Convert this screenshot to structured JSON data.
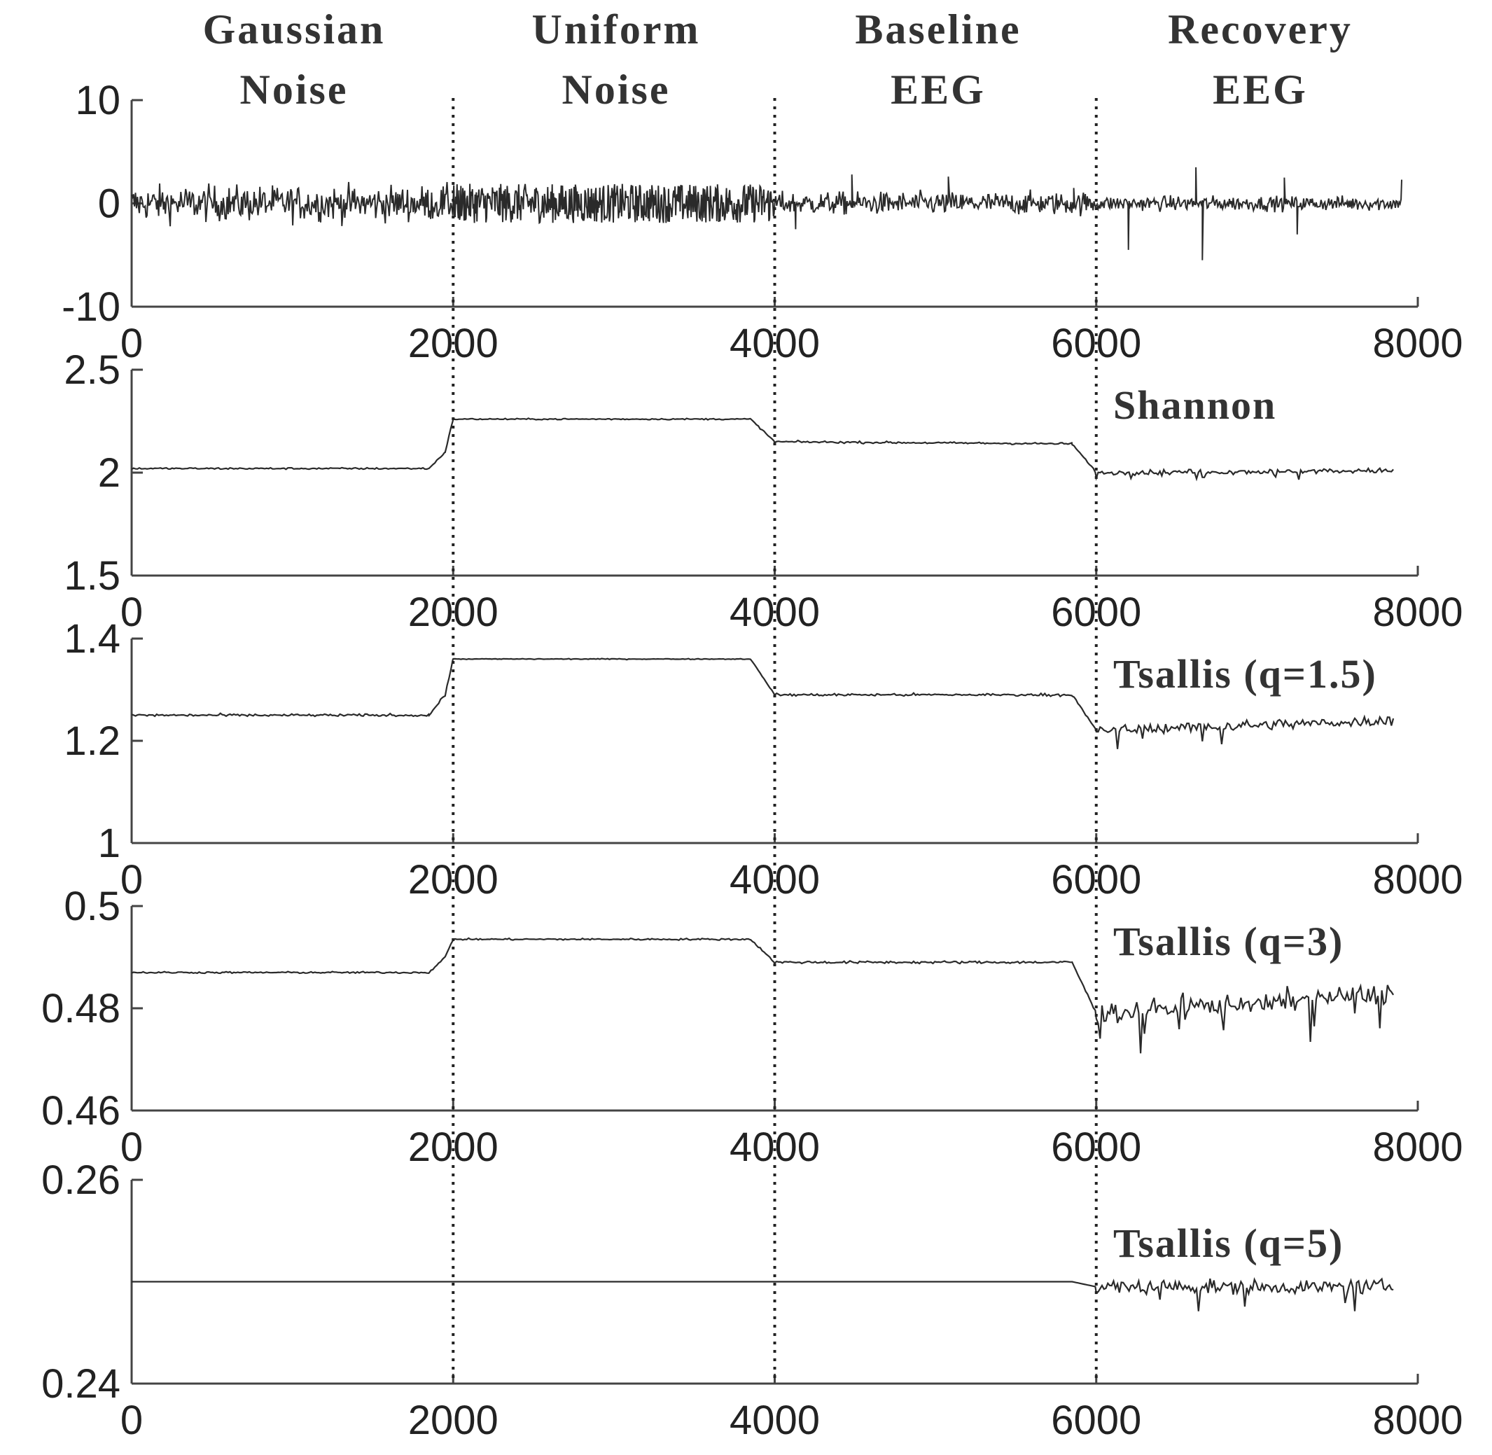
{
  "chart_data": [
    {
      "type": "line",
      "panel": "signal",
      "label": "",
      "xlim": [
        0,
        8000
      ],
      "ylim": [
        -10,
        10
      ],
      "xticks": [
        "0",
        "2000",
        "4000",
        "6000",
        "8000"
      ],
      "yticks": [
        "10",
        "0",
        "-10"
      ],
      "segments": [
        {
          "x0": 0,
          "x1": 2000,
          "kind": "noise",
          "amp": 2.2,
          "base": 0
        },
        {
          "x0": 2000,
          "x1": 4000,
          "kind": "uniform",
          "amp": 1.9,
          "base": 0
        },
        {
          "x0": 4000,
          "x1": 6000,
          "kind": "noise",
          "amp": 1.4,
          "base": 0
        },
        {
          "x0": 6000,
          "x1": 7900,
          "kind": "noise",
          "amp": 0.9,
          "base": 0
        }
      ],
      "spikes": [
        [
          4130,
          -2.5
        ],
        [
          4480,
          2.8
        ],
        [
          5080,
          2.6
        ],
        [
          5860,
          1.5
        ],
        [
          6200,
          -4.5
        ],
        [
          6620,
          3.5
        ],
        [
          6660,
          -5.5
        ],
        [
          7170,
          2.5
        ],
        [
          7250,
          -3.0
        ],
        [
          7900,
          2.3
        ]
      ]
    },
    {
      "type": "line",
      "panel": "shannon",
      "label": "Shannon",
      "xlim": [
        0,
        8000
      ],
      "ylim": [
        1.5,
        2.5
      ],
      "xticks": [
        "0",
        "2000",
        "4000",
        "6000",
        "8000"
      ],
      "yticks": [
        "2.5",
        "2",
        "1.5"
      ],
      "points": [
        [
          0,
          2.02
        ],
        [
          1850,
          2.02
        ],
        [
          1950,
          2.1
        ],
        [
          2000,
          2.26
        ],
        [
          3850,
          2.26
        ],
        [
          4000,
          2.15
        ],
        [
          5850,
          2.14
        ],
        [
          6000,
          2.0
        ],
        [
          7850,
          2.01
        ]
      ],
      "jitter": [
        0.005,
        0.004,
        0.006,
        0.014
      ]
    },
    {
      "type": "line",
      "panel": "tsallis-1.5",
      "label": "Tsallis (q=1.5)",
      "xlim": [
        0,
        8000
      ],
      "ylim": [
        1,
        1.4
      ],
      "xticks": [
        "0",
        "2000",
        "4000",
        "6000",
        "8000"
      ],
      "yticks": [
        "1.4",
        "1.2",
        "1"
      ],
      "points": [
        [
          0,
          1.25
        ],
        [
          1850,
          1.25
        ],
        [
          1950,
          1.29
        ],
        [
          2000,
          1.36
        ],
        [
          3850,
          1.36
        ],
        [
          4000,
          1.29
        ],
        [
          5850,
          1.29
        ],
        [
          6000,
          1.22
        ],
        [
          7850,
          1.24
        ]
      ],
      "jitter": [
        0.003,
        0.001,
        0.003,
        0.012
      ]
    },
    {
      "type": "line",
      "panel": "tsallis-3",
      "label": "Tsallis (q=3)",
      "xlim": [
        0,
        8000
      ],
      "ylim": [
        0.46,
        0.5
      ],
      "xticks": [
        "0",
        "2000",
        "4000",
        "6000",
        "8000"
      ],
      "yticks": [
        "0.5",
        "0.48",
        "0.46"
      ],
      "points": [
        [
          0,
          0.487
        ],
        [
          1850,
          0.487
        ],
        [
          1950,
          0.49
        ],
        [
          2000,
          0.4935
        ],
        [
          3850,
          0.4935
        ],
        [
          4000,
          0.489
        ],
        [
          5850,
          0.489
        ],
        [
          6000,
          0.479
        ],
        [
          7850,
          0.483
        ]
      ],
      "jitter": [
        0.0002,
        0.0002,
        0.0003,
        0.0025
      ]
    },
    {
      "type": "line",
      "panel": "tsallis-5",
      "label": "Tsallis (q=5)",
      "xlim": [
        0,
        8000
      ],
      "ylim": [
        0.24,
        0.26
      ],
      "xticks": [
        "0",
        "2000",
        "4000",
        "6000",
        "8000"
      ],
      "yticks": [
        "0.26",
        "0.24"
      ],
      "points": [
        [
          0,
          0.25
        ],
        [
          5850,
          0.25
        ],
        [
          6000,
          0.2495
        ],
        [
          7850,
          0.2495
        ]
      ],
      "jitter": [
        0.0,
        0.0,
        0.0,
        0.0008
      ]
    }
  ],
  "segment_labels": [
    {
      "line1": "Gaussian",
      "line2": "Noise",
      "x": 1000
    },
    {
      "line1": "Uniform",
      "line2": "Noise",
      "x": 3000
    },
    {
      "line1": "Baseline",
      "line2": "EEG",
      "x": 5000
    },
    {
      "line1": "Recovery",
      "line2": "EEG",
      "x": 7000
    }
  ],
  "dividers": [
    2000,
    4000,
    6000
  ]
}
